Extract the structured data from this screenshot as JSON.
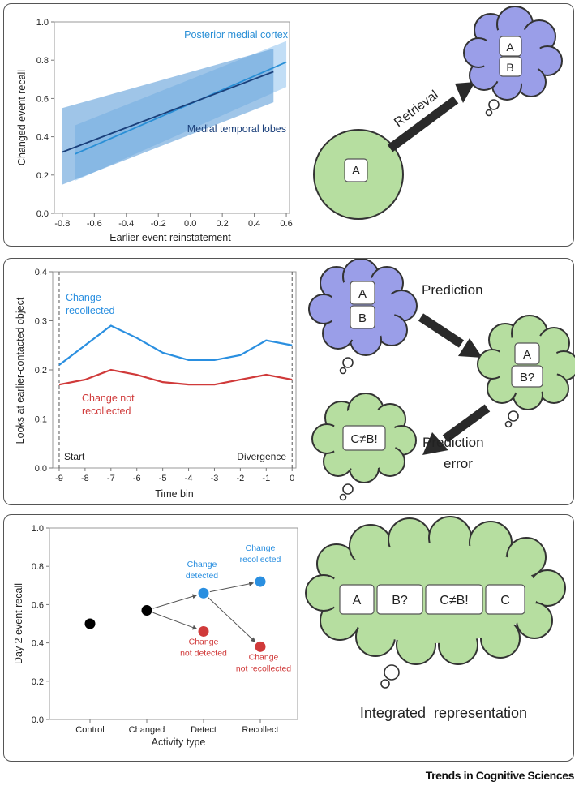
{
  "chart_data": [
    {
      "type": "line",
      "xlabel": "Earlier event reinstatement",
      "ylabel": "Changed event recall",
      "xlim": [
        -0.85,
        0.62
      ],
      "ylim": [
        0,
        1.0
      ],
      "x_ticks": [
        "-0.8",
        "-0.6",
        "-0.4",
        "-0.2",
        "0.0",
        "0.2",
        "0.4",
        "0.6"
      ],
      "y_ticks": [
        "0.0",
        "0.2",
        "0.4",
        "0.6",
        "0.8",
        "1.0"
      ],
      "series": [
        {
          "name": "Posterior medial cortex",
          "color": "#2a8fd6",
          "x": [
            -0.72,
            0.6
          ],
          "y": [
            0.31,
            0.79
          ],
          "lower": [
            0.17,
            0.66
          ],
          "upper": [
            0.46,
            0.9
          ]
        },
        {
          "name": "Medial temporal lobes",
          "color": "#1a3f7a",
          "x": [
            -0.8,
            0.52
          ],
          "y": [
            0.32,
            0.74
          ],
          "lower": [
            0.15,
            0.58
          ],
          "upper": [
            0.55,
            0.86
          ]
        }
      ]
    },
    {
      "type": "line",
      "xlabel": "Time bin",
      "ylabel": "Looks at earlier-contacted object",
      "xlim": [
        -9.25,
        0.15
      ],
      "ylim": [
        0,
        0.4
      ],
      "x_ticks": [
        "-9",
        "-8",
        "-7",
        "-6",
        "-5",
        "-4",
        "-3",
        "-2",
        "-1",
        "0"
      ],
      "y_ticks": [
        "0.0",
        "0.1",
        "0.2",
        "0.3",
        "0.4"
      ],
      "x": [
        -9,
        -8,
        -7,
        -6,
        -5,
        -4,
        -3,
        -2,
        -1,
        0
      ],
      "series": [
        {
          "name": "Change recollected",
          "color": "#2a8fe0",
          "values": [
            0.21,
            0.25,
            0.29,
            0.265,
            0.235,
            0.22,
            0.22,
            0.23,
            0.26,
            0.25
          ]
        },
        {
          "name": "Change not recollected",
          "color": "#d03a3a",
          "values": [
            0.17,
            0.18,
            0.2,
            0.19,
            0.175,
            0.17,
            0.17,
            0.18,
            0.19,
            0.18
          ]
        }
      ],
      "annotations": [
        "Start",
        "Divergence"
      ]
    },
    {
      "type": "scatter",
      "xlabel": "Activity type",
      "ylabel": "Day 2 event recall",
      "categories": [
        "Control",
        "Changed",
        "Detect",
        "Recollect"
      ],
      "ylim": [
        0,
        1.0
      ],
      "y_ticks": [
        "0.0",
        "0.2",
        "0.4",
        "0.6",
        "0.8",
        "1.0"
      ],
      "points": [
        {
          "category": "Control",
          "value": 0.5,
          "color": "#000000"
        },
        {
          "category": "Changed",
          "value": 0.57,
          "color": "#000000"
        },
        {
          "category": "Detect",
          "value": 0.66,
          "color": "#2a8fe0",
          "label": [
            "Change",
            "detected"
          ]
        },
        {
          "category": "Detect",
          "value": 0.46,
          "color": "#d03a3a",
          "label": [
            "Change",
            "not detected"
          ]
        },
        {
          "category": "Recollect",
          "value": 0.72,
          "color": "#2a8fe0",
          "label": [
            "Change",
            "recollected"
          ]
        },
        {
          "category": "Recollect",
          "value": 0.38,
          "color": "#d03a3a",
          "label": [
            "Change",
            "not recollected"
          ]
        }
      ]
    }
  ],
  "diagram": {
    "retrieval_label": "Retrieval",
    "prediction_label": "Prediction",
    "prediction_error_label_line1": "Prediction",
    "prediction_error_label_line2": "error",
    "integrated_label": "Integrated  representation",
    "box_a": "A",
    "box_b": "B",
    "box_b_q": "B?",
    "box_c_ne_b": "C≠B!",
    "box_c": "C"
  },
  "colors": {
    "cloud_purple": "#9a9ee8",
    "cloud_green": "#b6dea0",
    "arrow": "#2a2a2a"
  },
  "footer": "Trends in Cognitive Sciences"
}
